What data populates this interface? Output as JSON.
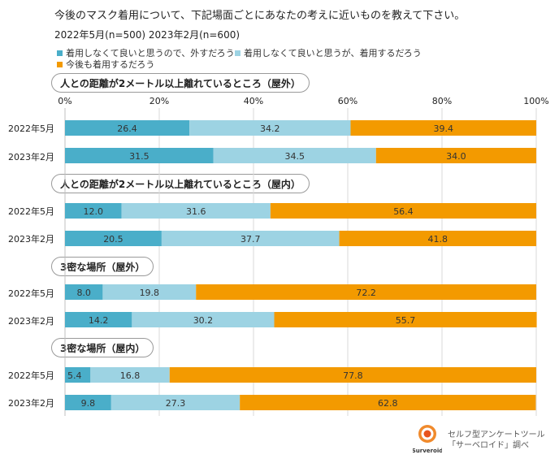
{
  "title": "今後のマスク着用について、下記場面ごとにあなたの考えに近いものを教えて下さい。",
  "subtitle": "2022年5月(n=500)  2023年2月(n=600)",
  "colors": {
    "dark_blue": "#4aaec9",
    "light_blue": "#9dd3e3",
    "orange": "#f39a00"
  },
  "legend": [
    {
      "label": "着用しなくて良いと思うので、外すだろう",
      "color": "#4aaec9"
    },
    {
      "label": "着用しなくて良いと思うが、着用するだろう",
      "color": "#9dd3e3"
    },
    {
      "label": "今後も着用するだろう",
      "color": "#f39a00"
    }
  ],
  "footer": {
    "logo_text": "Surveroid",
    "caption_line1": "セルフ型アンケートツール",
    "caption_line2": "「サーベロイド」調べ"
  },
  "chart_data": {
    "type": "bar",
    "orientation": "horizontal",
    "stacked": true,
    "xlim": [
      0,
      100
    ],
    "xticks": [
      "0%",
      "20%",
      "40%",
      "60%",
      "80%",
      "100%"
    ],
    "series_names": [
      "着用しなくて良いと思うので、外すだろう",
      "着用しなくて良いと思うが、着用するだろう",
      "今後も着用するだろう"
    ],
    "groups": [
      {
        "name": "人との距離が2メートル以上離れているところ（屋外）",
        "rows": [
          {
            "label": "2022年5月",
            "values": [
              26.4,
              34.2,
              39.4
            ],
            "value_labels": [
              "26.4",
              "34.2",
              "39.4"
            ]
          },
          {
            "label": "2023年2月",
            "values": [
              31.5,
              34.5,
              34.0
            ],
            "value_labels": [
              "31.5",
              "34.5",
              "34.0"
            ]
          }
        ]
      },
      {
        "name": "人との距離が2メートル以上離れているところ（屋内）",
        "rows": [
          {
            "label": "2022年5月",
            "values": [
              12.0,
              31.6,
              56.4
            ],
            "value_labels": [
              "12.0",
              "31.6",
              "56.4"
            ]
          },
          {
            "label": "2023年2月",
            "values": [
              20.5,
              37.7,
              41.8
            ],
            "value_labels": [
              "20.5",
              "37.7",
              "41.8"
            ]
          }
        ]
      },
      {
        "name": "3密な場所（屋外）",
        "rows": [
          {
            "label": "2022年5月",
            "values": [
              8.0,
              19.8,
              72.2
            ],
            "value_labels": [
              "8.0",
              "19.8",
              "72.2"
            ]
          },
          {
            "label": "2023年2月",
            "values": [
              14.2,
              30.2,
              55.7
            ],
            "value_labels": [
              "14.2",
              "30.2",
              "55.7"
            ]
          }
        ]
      },
      {
        "name": "3密な場所（屋内）",
        "rows": [
          {
            "label": "2022年5月",
            "values": [
              5.4,
              16.8,
              77.8
            ],
            "value_labels": [
              "5.4",
              "16.8",
              "77.8"
            ]
          },
          {
            "label": "2023年2月",
            "values": [
              9.8,
              27.3,
              62.8
            ],
            "value_labels": [
              "9.8",
              "27.3",
              "62.8"
            ]
          }
        ]
      }
    ]
  }
}
